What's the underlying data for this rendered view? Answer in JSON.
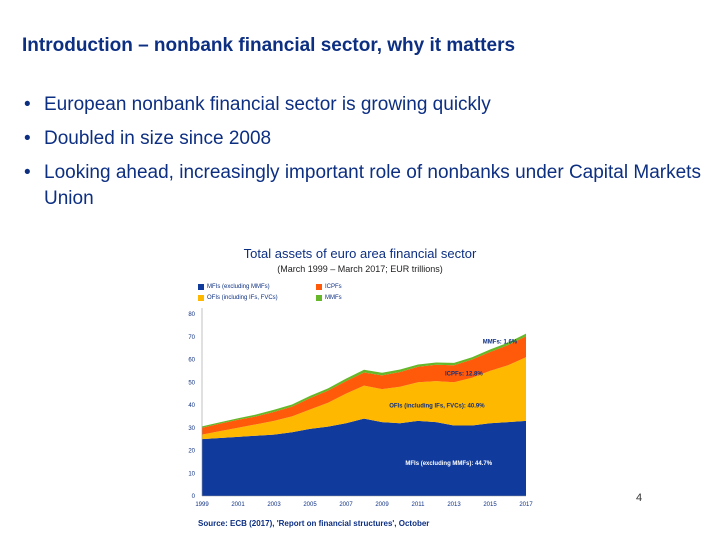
{
  "slide": {
    "title": "Introduction – nonbank financial sector, why it matters",
    "bullets": [
      "European nonbank financial sector is growing quickly",
      "Doubled in size since 2008",
      "Looking ahead, increasingly important role of nonbanks under Capital Markets Union"
    ],
    "bullet_symbol": "•",
    "page_number": "4",
    "source": "Source: ECB (2017), 'Report on financial structures', October"
  },
  "colors": {
    "title": "#0d2f82",
    "mfis": "#103a9c",
    "ofis": "#ffb800",
    "icpfs": "#ff5a0a",
    "mmfs": "#66b82a"
  },
  "chart_data": {
    "type": "area",
    "stacked": true,
    "title": "Total assets of euro area financial sector",
    "subtitle": "(March 1999 – March 2017; EUR trillions)",
    "x": [
      1999,
      2000,
      2001,
      2002,
      2003,
      2004,
      2005,
      2006,
      2007,
      2008,
      2009,
      2010,
      2011,
      2012,
      2013,
      2014,
      2015,
      2016,
      2017
    ],
    "x_ticks": [
      "1999",
      "2001",
      "2003",
      "2005",
      "2007",
      "2009",
      "2011",
      "2013",
      "2015",
      "2017"
    ],
    "ylim": [
      0,
      80
    ],
    "y_ticks": [
      "0",
      "10",
      "20",
      "30",
      "40",
      "50",
      "60",
      "70",
      "80"
    ],
    "grid": false,
    "legend_position": "top-left",
    "series": [
      {
        "name": "MFIs (excluding MMFs)",
        "color": "#103a9c",
        "values": [
          25,
          25.5,
          26,
          26.5,
          27,
          28,
          29.5,
          30.5,
          32,
          34,
          32.5,
          32,
          33,
          32.5,
          31,
          31,
          32,
          32.5,
          33
        ]
      },
      {
        "name": "OFIs (including IFs, FVCs)",
        "color": "#ffb800",
        "values": [
          2,
          3,
          4,
          5,
          6,
          7,
          8.5,
          10.5,
          13,
          14.5,
          14.5,
          16,
          17,
          18,
          19,
          21,
          23,
          25,
          28
        ]
      },
      {
        "name": "ICPFs",
        "color": "#ff5a0a",
        "values": [
          3,
          3.3,
          3.5,
          3.5,
          4,
          4.3,
          5,
          5.3,
          5.5,
          5.8,
          6,
          6.5,
          6.8,
          7.2,
          7.5,
          8,
          8.3,
          8.8,
          9.2
        ]
      },
      {
        "name": "MMFs",
        "color": "#66b82a",
        "values": [
          0.6,
          0.6,
          0.7,
          0.8,
          0.9,
          0.9,
          1,
          1,
          1.1,
          1.2,
          1.2,
          1.1,
          1,
          1,
          1,
          1,
          1.1,
          1.1,
          1.2
        ]
      }
    ],
    "annotations": [
      {
        "text": "MMFs: 1.6%",
        "series": "MMFs"
      },
      {
        "text": "ICPFs: 12.8%",
        "series": "ICPFs"
      },
      {
        "text": "OFIs (including IFs, FVCs): 40.9%",
        "series": "OFIs (including IFs, FVCs)"
      },
      {
        "text": "MFIs (excluding MMFs): 44.7%",
        "series": "MFIs (excluding MMFs)"
      }
    ]
  }
}
